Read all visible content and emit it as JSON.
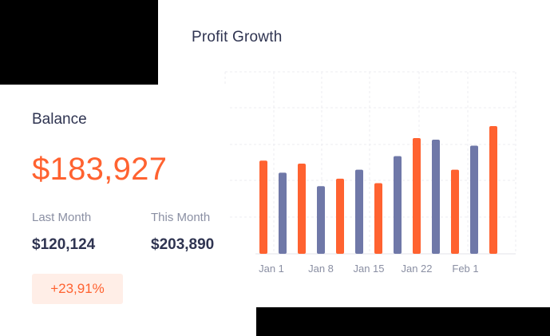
{
  "title": "Profit Growth",
  "balance": {
    "label": "Balance",
    "value": "$183,927",
    "last_month": {
      "label": "Last Month",
      "value": "$120,124"
    },
    "this_month": {
      "label": "This Month",
      "value": "$203,890"
    },
    "change": "+23,91%"
  },
  "colors": {
    "accent": "#ff6230",
    "secondary": "#6f78a8",
    "text": "#2f3451",
    "muted": "#8a8fa3",
    "badge_bg": "#ffeee7"
  },
  "chart_data": {
    "type": "bar",
    "title": "Profit Growth",
    "x_tick_labels": [
      "Jan 1",
      "Jan 8",
      "Jan 15",
      "Jan 22",
      "Feb 1"
    ],
    "grid": true,
    "legend": "none",
    "ylim": [
      0,
      100
    ],
    "bars": [
      {
        "series": 0,
        "value": 62
      },
      {
        "series": 1,
        "value": 54
      },
      {
        "series": 0,
        "value": 60
      },
      {
        "series": 1,
        "value": 45
      },
      {
        "series": 0,
        "value": 50
      },
      {
        "series": 1,
        "value": 56
      },
      {
        "series": 0,
        "value": 47
      },
      {
        "series": 1,
        "value": 65
      },
      {
        "series": 0,
        "value": 77
      },
      {
        "series": 1,
        "value": 76
      },
      {
        "series": 0,
        "value": 56
      },
      {
        "series": 1,
        "value": 72
      },
      {
        "series": 0,
        "value": 85
      }
    ],
    "series": [
      {
        "color": "#ff6230"
      },
      {
        "color": "#6f78a8"
      }
    ]
  }
}
